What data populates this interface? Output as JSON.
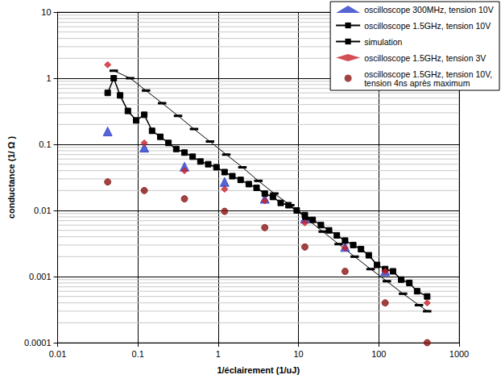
{
  "chart_data": {
    "type": "scatter",
    "x_label": "1/éclairement (1/uJ)",
    "y_label": "conductance (1/ Ω )",
    "log": true,
    "grid": true,
    "legend": "top-right",
    "xlim": [
      0.01,
      1000
    ],
    "xticks": [
      0.01,
      0.1,
      1,
      10,
      100,
      1000
    ],
    "ylim": [
      0.0001,
      10
    ],
    "yticks": [
      0.0001,
      0.001,
      0.01,
      0.1,
      1,
      10
    ],
    "series": [
      {
        "name": "oscilloscope 300MHz, tension 10V",
        "type": "scatter",
        "marker": "triangle",
        "color": "#2b3fc9",
        "x": [
          0.042,
          0.12,
          0.38,
          1.2,
          3.8,
          12,
          38,
          120
        ],
        "values": [
          0.157,
          0.089,
          0.046,
          0.027,
          0.015,
          0.0075,
          0.0028,
          0.0012
        ]
      },
      {
        "name": "oscilloscope 1.5GHz, tension 10V",
        "type": "line",
        "marker": "square",
        "line_style": "solid",
        "color": "#000000",
        "x": [
          0.042,
          0.05,
          0.06,
          0.075,
          0.095,
          0.12,
          0.15,
          0.19,
          0.24,
          0.3,
          0.38,
          0.48,
          0.6,
          0.75,
          0.95,
          1.2,
          1.5,
          1.9,
          2.4,
          3,
          3.8,
          4.8,
          6,
          7.5,
          9.5,
          12,
          15,
          19,
          24,
          30,
          38,
          48,
          60,
          75,
          95,
          120,
          150,
          190,
          240,
          300,
          400
        ],
        "values": [
          0.6,
          1.0,
          0.55,
          0.32,
          0.23,
          0.28,
          0.16,
          0.13,
          0.105,
          0.085,
          0.075,
          0.065,
          0.055,
          0.05,
          0.045,
          0.038,
          0.033,
          0.029,
          0.025,
          0.022,
          0.018,
          0.016,
          0.013,
          0.012,
          0.01,
          0.0085,
          0.0072,
          0.006,
          0.005,
          0.0042,
          0.0035,
          0.003,
          0.0026,
          0.0021,
          0.0015,
          0.0013,
          0.0012,
          0.0009,
          0.0008,
          0.0006,
          0.0005
        ]
      },
      {
        "name": "simulation",
        "type": "line",
        "marker": "dash",
        "line_style": "solid",
        "color": "#000000",
        "x": [
          0.05,
          0.08,
          0.126,
          0.2,
          0.316,
          0.5,
          0.79,
          1.26,
          2,
          3.16,
          5,
          7.9,
          12.6,
          20,
          31.6,
          50,
          79,
          126,
          200,
          316,
          400
        ],
        "values": [
          1.3,
          1.0,
          0.65,
          0.42,
          0.27,
          0.17,
          0.11,
          0.07,
          0.045,
          0.028,
          0.018,
          0.012,
          0.0075,
          0.0048,
          0.0031,
          0.002,
          0.0013,
          0.00085,
          0.00055,
          0.00037,
          0.0003
        ]
      },
      {
        "name": "oscilloscope 1.5GHz, tension 3V",
        "type": "scatter",
        "marker": "diamond",
        "color": "#c8232b",
        "x": [
          0.042,
          0.12,
          0.38,
          1.2,
          3.8,
          12,
          38,
          120,
          400
        ],
        "values": [
          1.6,
          0.105,
          0.04,
          0.021,
          0.014,
          0.0065,
          0.0027,
          0.0012,
          0.0004
        ]
      },
      {
        "name": "oscilloscope 1.5GHz, tension 10V, tension 4ns après maximum",
        "type": "scatter",
        "marker": "circle",
        "color": "#8b1414",
        "x": [
          0.042,
          0.12,
          0.38,
          1.2,
          3.8,
          12,
          38,
          120,
          400
        ],
        "values": [
          0.027,
          0.02,
          0.015,
          0.0097,
          0.0055,
          0.0028,
          0.0012,
          0.0004,
          0.0001
        ]
      }
    ]
  }
}
